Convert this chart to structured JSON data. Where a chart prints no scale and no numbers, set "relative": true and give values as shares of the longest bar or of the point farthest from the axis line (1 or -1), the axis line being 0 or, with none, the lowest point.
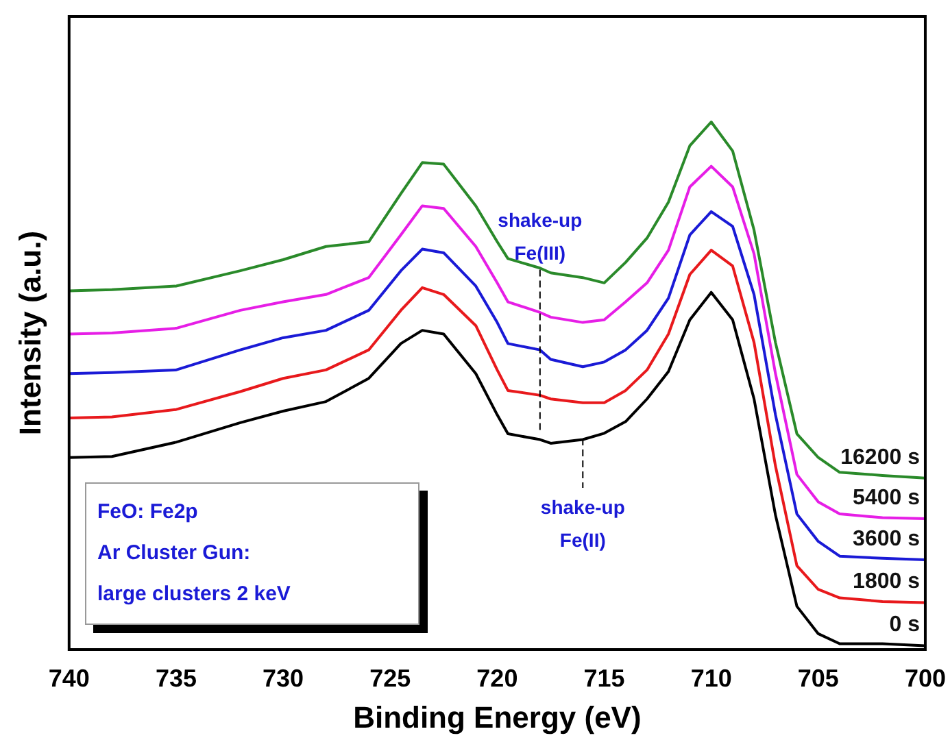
{
  "chart_data": {
    "type": "line",
    "relative": true,
    "xlabel": "Binding Energy (eV)",
    "ylabel": "Intensity (a.u.)",
    "xlim": [
      740,
      700
    ],
    "xticks": [
      740,
      735,
      730,
      725,
      720,
      715,
      710,
      705,
      700
    ],
    "grid": false,
    "legend": false,
    "marker": "none",
    "line_style": "solid",
    "x": [
      740,
      738,
      735,
      732,
      730,
      728,
      726,
      724.5,
      723.5,
      722.5,
      721,
      720,
      719.5,
      718,
      717.5,
      716,
      715,
      714,
      713,
      712,
      711,
      710,
      709,
      708,
      707,
      706,
      705,
      704,
      702,
      700
    ],
    "series": [
      {
        "name": "0 s",
        "color": "#000000",
        "values": [
          0.364,
          0.366,
          0.393,
          0.43,
          0.452,
          0.47,
          0.514,
          0.58,
          0.605,
          0.598,
          0.523,
          0.445,
          0.409,
          0.398,
          0.391,
          0.398,
          0.41,
          0.432,
          0.475,
          0.527,
          0.625,
          0.677,
          0.625,
          0.475,
          0.255,
          0.082,
          0.03,
          0.011,
          0.011,
          0.007
        ]
      },
      {
        "name": "1800 s",
        "color": "#e8191c",
        "values": [
          0.439,
          0.441,
          0.455,
          0.489,
          0.514,
          0.53,
          0.568,
          0.643,
          0.686,
          0.673,
          0.614,
          0.53,
          0.491,
          0.482,
          0.475,
          0.468,
          0.468,
          0.491,
          0.53,
          0.598,
          0.711,
          0.757,
          0.727,
          0.582,
          0.348,
          0.159,
          0.114,
          0.098,
          0.091,
          0.089
        ]
      },
      {
        "name": "3600 s",
        "color": "#1a1ad6",
        "values": [
          0.523,
          0.525,
          0.53,
          0.568,
          0.591,
          0.605,
          0.643,
          0.718,
          0.759,
          0.752,
          0.689,
          0.62,
          0.58,
          0.568,
          0.55,
          0.536,
          0.545,
          0.568,
          0.605,
          0.666,
          0.786,
          0.83,
          0.802,
          0.673,
          0.445,
          0.257,
          0.205,
          0.177,
          0.173,
          0.17
        ]
      },
      {
        "name": "5400 s",
        "color": "#e61ee6",
        "values": [
          0.598,
          0.6,
          0.609,
          0.643,
          0.659,
          0.673,
          0.705,
          0.786,
          0.841,
          0.836,
          0.764,
          0.695,
          0.659,
          0.639,
          0.63,
          0.62,
          0.625,
          0.659,
          0.695,
          0.757,
          0.877,
          0.916,
          0.877,
          0.75,
          0.523,
          0.332,
          0.28,
          0.257,
          0.25,
          0.248
        ]
      },
      {
        "name": "16200 s",
        "color": "#2a8a2a",
        "values": [
          0.68,
          0.682,
          0.689,
          0.718,
          0.739,
          0.764,
          0.773,
          0.864,
          0.923,
          0.92,
          0.841,
          0.773,
          0.741,
          0.723,
          0.714,
          0.705,
          0.695,
          0.734,
          0.78,
          0.848,
          0.955,
          1,
          0.945,
          0.795,
          0.582,
          0.409,
          0.364,
          0.336,
          0.33,
          0.325
        ]
      }
    ],
    "annotations": [
      {
        "text": "shake-up Fe(III)",
        "x": 718,
        "y": 0.72
      },
      {
        "text": "shake-up Fe(II)",
        "x": 716,
        "y": 0.4
      },
      "FeO: Fe2p",
      "Ar Cluster Gun:",
      "large clusters 2 keV"
    ]
  }
}
